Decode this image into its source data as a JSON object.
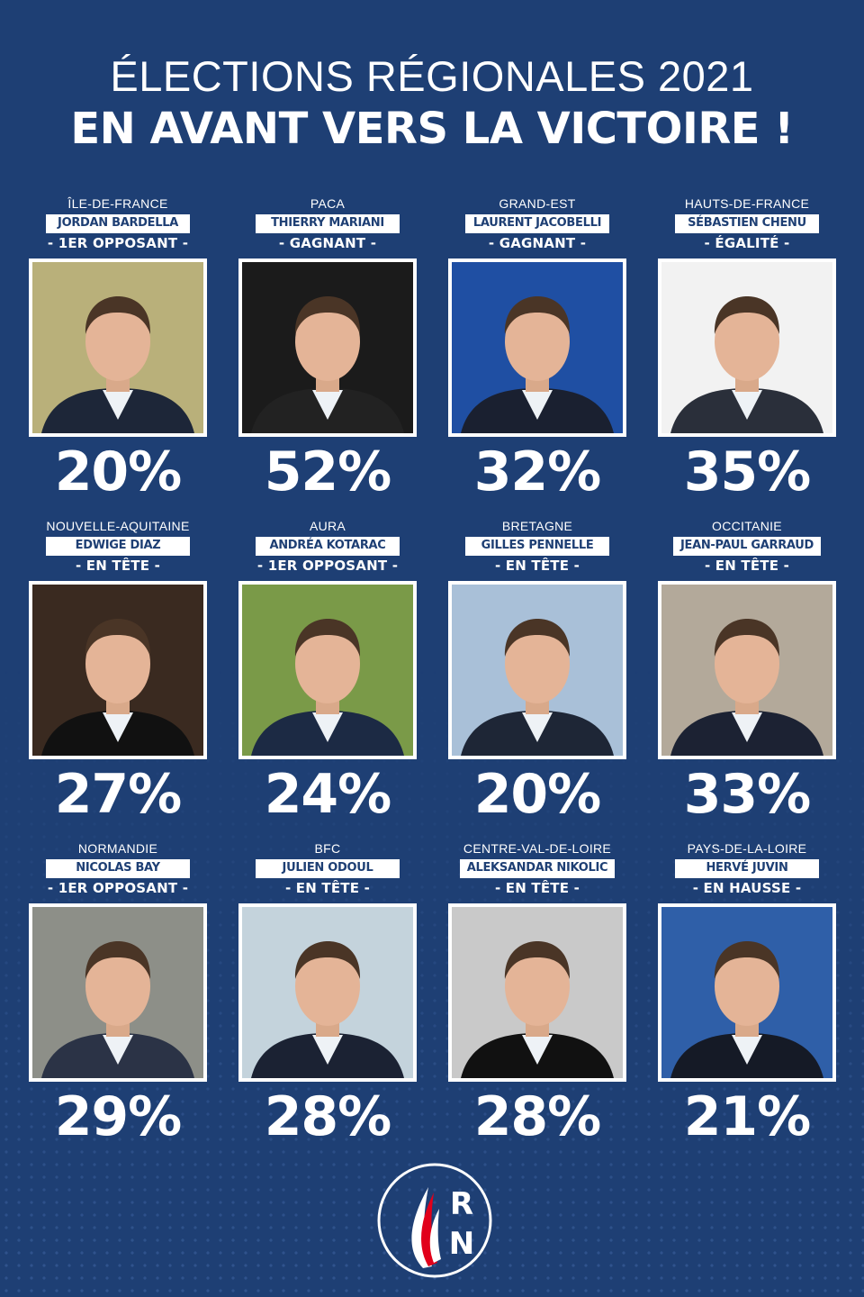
{
  "header": {
    "line1": "ÉLECTIONS RÉGIONALES 2021",
    "line2": "EN AVANT VERS LA VICTOIRE !"
  },
  "colors": {
    "background": "#1e3f74",
    "name_box_text": "#1e3f74",
    "logo_red": "#e1001a",
    "logo_blue": "#1e3f74"
  },
  "candidates": [
    {
      "region": "ÎLE-DE-FRANCE",
      "name": "JORDAN BARDELLA",
      "status": "- 1ER OPPOSANT -",
      "percent": "20%",
      "photo_bg": "#b9b07a",
      "suit": "#1d2638"
    },
    {
      "region": "PACA",
      "name": "THIERRY MARIANI",
      "status": "- GAGNANT -",
      "percent": "52%",
      "photo_bg": "#1b1b1b",
      "suit": "#222222"
    },
    {
      "region": "GRAND-EST",
      "name": "LAURENT JACOBELLI",
      "status": "- GAGNANT -",
      "percent": "32%",
      "photo_bg": "#1f4fa3",
      "suit": "#1a2030"
    },
    {
      "region": "HAUTS-DE-FRANCE",
      "name": "SÉBASTIEN CHENU",
      "status": "- ÉGALITÉ -",
      "percent": "35%",
      "photo_bg": "#f2f2f2",
      "suit": "#2a2f3a"
    },
    {
      "region": "NOUVELLE-AQUITAINE",
      "name": "EDWIGE DIAZ",
      "status": "- EN TÊTE -",
      "percent": "27%",
      "photo_bg": "#3a2a20",
      "suit": "#111111"
    },
    {
      "region": "AURA",
      "name": "ANDRÉA KOTARAC",
      "status": "- 1ER OPPOSANT -",
      "percent": "24%",
      "photo_bg": "#7a9a48",
      "suit": "#1c2a44"
    },
    {
      "region": "BRETAGNE",
      "name": "GILLES PENNELLE",
      "status": "- EN TÊTE -",
      "percent": "20%",
      "photo_bg": "#a9c0d8",
      "suit": "#1e2636"
    },
    {
      "region": "OCCITANIE",
      "name": "JEAN-PAUL GARRAUD",
      "status": "- EN TÊTE -",
      "percent": "33%",
      "photo_bg": "#b3a99a",
      "suit": "#1c2233"
    },
    {
      "region": "NORMANDIE",
      "name": "NICOLAS BAY",
      "status": "- 1ER OPPOSANT -",
      "percent": "29%",
      "photo_bg": "#8d8f88",
      "suit": "#2b3346"
    },
    {
      "region": "BFC",
      "name": "JULIEN ODOUL",
      "status": "- EN TÊTE -",
      "percent": "28%",
      "photo_bg": "#c4d3dc",
      "suit": "#1b2233"
    },
    {
      "region": "CENTRE-VAL-DE-LOIRE",
      "name": "ALEKSANDAR NIKOLIC",
      "status": "- EN TÊTE -",
      "percent": "28%",
      "photo_bg": "#c9c9c9",
      "suit": "#111111"
    },
    {
      "region": "PAYS-DE-LA-LOIRE",
      "name": "HERVÉ JUVIN",
      "status": "- EN HAUSSE -",
      "percent": "21%",
      "photo_bg": "#2f5fa8",
      "suit": "#151a26"
    }
  ],
  "logo": {
    "letter_top": "R",
    "letter_bottom": "N"
  }
}
